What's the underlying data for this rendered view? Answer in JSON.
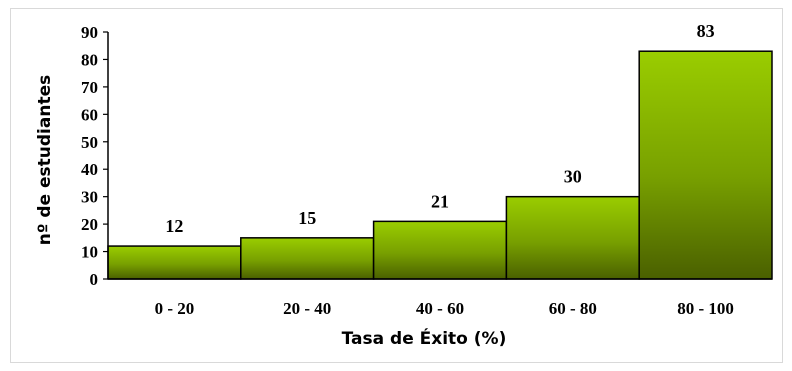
{
  "chart_data": {
    "type": "bar",
    "title": "",
    "xlabel": "Tasa de Éxito (%)",
    "ylabel": "nº de estudiantes",
    "categories": [
      "0 - 20",
      "20 - 40",
      "40 - 60",
      "60 - 80",
      "80 - 100"
    ],
    "values": [
      12,
      15,
      21,
      30,
      83
    ],
    "data_labels": [
      "12",
      "15",
      "21",
      "30",
      "83"
    ],
    "ylim": [
      0,
      90
    ],
    "yticks": [
      "0",
      "10",
      "20",
      "30",
      "40",
      "50",
      "60",
      "70",
      "80",
      "90"
    ],
    "grid": false,
    "legend": "none",
    "colors": {
      "bar_top": "#9acd00",
      "bar_bottom": "#4a6000",
      "bar_edge": "#000000",
      "frame": "#d9d9d9"
    }
  }
}
